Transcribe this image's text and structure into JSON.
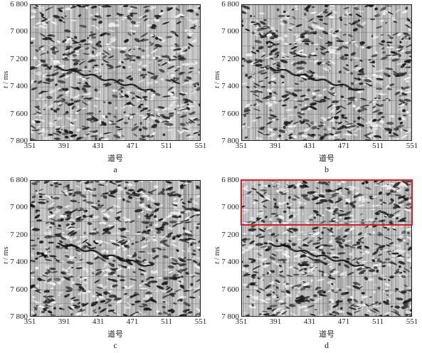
{
  "panels": [
    {
      "id": "a",
      "label": "a",
      "highlight": false
    },
    {
      "id": "b",
      "label": "b",
      "highlight": false
    },
    {
      "id": "c",
      "label": "c",
      "highlight": false
    },
    {
      "id": "d",
      "label": "d",
      "highlight": true
    }
  ],
  "y_axis": {
    "label_var": "t",
    "label_unit": " / ms",
    "ticks": [
      "6 800",
      "7 000",
      "7 200",
      "7 400",
      "7 600",
      "7 800"
    ],
    "range": [
      6800,
      7800
    ]
  },
  "x_axis": {
    "label": "道号",
    "ticks": [
      "351",
      "391",
      "431",
      "471",
      "511",
      "551"
    ],
    "range": [
      351,
      551
    ]
  },
  "highlight_box": {
    "panel": "d",
    "x_range": [
      351,
      551
    ],
    "t_range": [
      6800,
      7130
    ],
    "color": "#d22027"
  },
  "colors": {
    "ink": "#231f20",
    "background": "#ffffff"
  }
}
